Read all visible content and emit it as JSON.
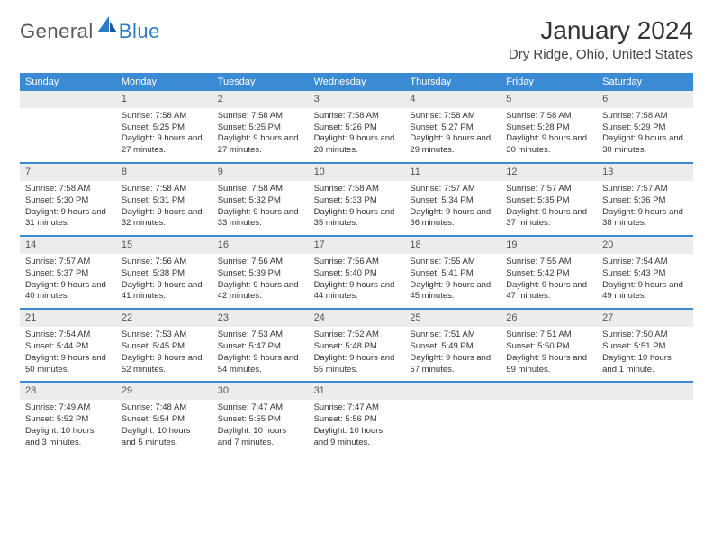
{
  "logo": {
    "general": "General",
    "blue": "Blue"
  },
  "title": "January 2024",
  "location": "Dry Ridge, Ohio, United States",
  "daynames": [
    "Sunday",
    "Monday",
    "Tuesday",
    "Wednesday",
    "Thursday",
    "Friday",
    "Saturday"
  ],
  "colors": {
    "header_bar": "#3b8bd4",
    "daynum_bg": "#ececec",
    "logo_gray": "#5a5a5a",
    "logo_blue": "#2d7bc4"
  },
  "weeks": [
    [
      {
        "num": "",
        "sunrise": "",
        "sunset": "",
        "daylight": ""
      },
      {
        "num": "1",
        "sunrise": "Sunrise: 7:58 AM",
        "sunset": "Sunset: 5:25 PM",
        "daylight": "Daylight: 9 hours and 27 minutes."
      },
      {
        "num": "2",
        "sunrise": "Sunrise: 7:58 AM",
        "sunset": "Sunset: 5:25 PM",
        "daylight": "Daylight: 9 hours and 27 minutes."
      },
      {
        "num": "3",
        "sunrise": "Sunrise: 7:58 AM",
        "sunset": "Sunset: 5:26 PM",
        "daylight": "Daylight: 9 hours and 28 minutes."
      },
      {
        "num": "4",
        "sunrise": "Sunrise: 7:58 AM",
        "sunset": "Sunset: 5:27 PM",
        "daylight": "Daylight: 9 hours and 29 minutes."
      },
      {
        "num": "5",
        "sunrise": "Sunrise: 7:58 AM",
        "sunset": "Sunset: 5:28 PM",
        "daylight": "Daylight: 9 hours and 30 minutes."
      },
      {
        "num": "6",
        "sunrise": "Sunrise: 7:58 AM",
        "sunset": "Sunset: 5:29 PM",
        "daylight": "Daylight: 9 hours and 30 minutes."
      }
    ],
    [
      {
        "num": "7",
        "sunrise": "Sunrise: 7:58 AM",
        "sunset": "Sunset: 5:30 PM",
        "daylight": "Daylight: 9 hours and 31 minutes."
      },
      {
        "num": "8",
        "sunrise": "Sunrise: 7:58 AM",
        "sunset": "Sunset: 5:31 PM",
        "daylight": "Daylight: 9 hours and 32 minutes."
      },
      {
        "num": "9",
        "sunrise": "Sunrise: 7:58 AM",
        "sunset": "Sunset: 5:32 PM",
        "daylight": "Daylight: 9 hours and 33 minutes."
      },
      {
        "num": "10",
        "sunrise": "Sunrise: 7:58 AM",
        "sunset": "Sunset: 5:33 PM",
        "daylight": "Daylight: 9 hours and 35 minutes."
      },
      {
        "num": "11",
        "sunrise": "Sunrise: 7:57 AM",
        "sunset": "Sunset: 5:34 PM",
        "daylight": "Daylight: 9 hours and 36 minutes."
      },
      {
        "num": "12",
        "sunrise": "Sunrise: 7:57 AM",
        "sunset": "Sunset: 5:35 PM",
        "daylight": "Daylight: 9 hours and 37 minutes."
      },
      {
        "num": "13",
        "sunrise": "Sunrise: 7:57 AM",
        "sunset": "Sunset: 5:36 PM",
        "daylight": "Daylight: 9 hours and 38 minutes."
      }
    ],
    [
      {
        "num": "14",
        "sunrise": "Sunrise: 7:57 AM",
        "sunset": "Sunset: 5:37 PM",
        "daylight": "Daylight: 9 hours and 40 minutes."
      },
      {
        "num": "15",
        "sunrise": "Sunrise: 7:56 AM",
        "sunset": "Sunset: 5:38 PM",
        "daylight": "Daylight: 9 hours and 41 minutes."
      },
      {
        "num": "16",
        "sunrise": "Sunrise: 7:56 AM",
        "sunset": "Sunset: 5:39 PM",
        "daylight": "Daylight: 9 hours and 42 minutes."
      },
      {
        "num": "17",
        "sunrise": "Sunrise: 7:56 AM",
        "sunset": "Sunset: 5:40 PM",
        "daylight": "Daylight: 9 hours and 44 minutes."
      },
      {
        "num": "18",
        "sunrise": "Sunrise: 7:55 AM",
        "sunset": "Sunset: 5:41 PM",
        "daylight": "Daylight: 9 hours and 45 minutes."
      },
      {
        "num": "19",
        "sunrise": "Sunrise: 7:55 AM",
        "sunset": "Sunset: 5:42 PM",
        "daylight": "Daylight: 9 hours and 47 minutes."
      },
      {
        "num": "20",
        "sunrise": "Sunrise: 7:54 AM",
        "sunset": "Sunset: 5:43 PM",
        "daylight": "Daylight: 9 hours and 49 minutes."
      }
    ],
    [
      {
        "num": "21",
        "sunrise": "Sunrise: 7:54 AM",
        "sunset": "Sunset: 5:44 PM",
        "daylight": "Daylight: 9 hours and 50 minutes."
      },
      {
        "num": "22",
        "sunrise": "Sunrise: 7:53 AM",
        "sunset": "Sunset: 5:45 PM",
        "daylight": "Daylight: 9 hours and 52 minutes."
      },
      {
        "num": "23",
        "sunrise": "Sunrise: 7:53 AM",
        "sunset": "Sunset: 5:47 PM",
        "daylight": "Daylight: 9 hours and 54 minutes."
      },
      {
        "num": "24",
        "sunrise": "Sunrise: 7:52 AM",
        "sunset": "Sunset: 5:48 PM",
        "daylight": "Daylight: 9 hours and 55 minutes."
      },
      {
        "num": "25",
        "sunrise": "Sunrise: 7:51 AM",
        "sunset": "Sunset: 5:49 PM",
        "daylight": "Daylight: 9 hours and 57 minutes."
      },
      {
        "num": "26",
        "sunrise": "Sunrise: 7:51 AM",
        "sunset": "Sunset: 5:50 PM",
        "daylight": "Daylight: 9 hours and 59 minutes."
      },
      {
        "num": "27",
        "sunrise": "Sunrise: 7:50 AM",
        "sunset": "Sunset: 5:51 PM",
        "daylight": "Daylight: 10 hours and 1 minute."
      }
    ],
    [
      {
        "num": "28",
        "sunrise": "Sunrise: 7:49 AM",
        "sunset": "Sunset: 5:52 PM",
        "daylight": "Daylight: 10 hours and 3 minutes."
      },
      {
        "num": "29",
        "sunrise": "Sunrise: 7:48 AM",
        "sunset": "Sunset: 5:54 PM",
        "daylight": "Daylight: 10 hours and 5 minutes."
      },
      {
        "num": "30",
        "sunrise": "Sunrise: 7:47 AM",
        "sunset": "Sunset: 5:55 PM",
        "daylight": "Daylight: 10 hours and 7 minutes."
      },
      {
        "num": "31",
        "sunrise": "Sunrise: 7:47 AM",
        "sunset": "Sunset: 5:56 PM",
        "daylight": "Daylight: 10 hours and 9 minutes."
      },
      {
        "num": "",
        "sunrise": "",
        "sunset": "",
        "daylight": ""
      },
      {
        "num": "",
        "sunrise": "",
        "sunset": "",
        "daylight": ""
      },
      {
        "num": "",
        "sunrise": "",
        "sunset": "",
        "daylight": ""
      }
    ]
  ]
}
